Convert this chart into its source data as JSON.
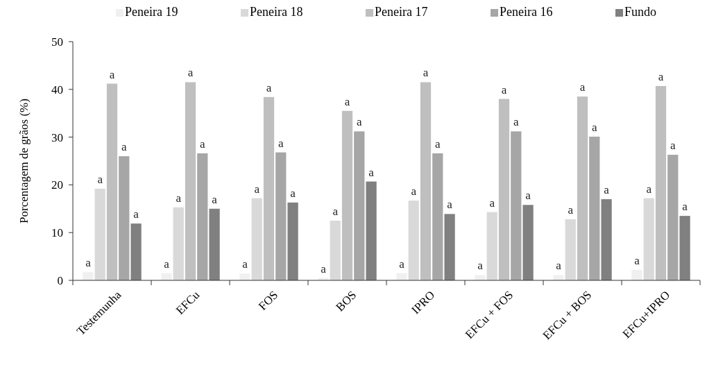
{
  "chart_data": {
    "type": "bar",
    "ylabel": "Porcentagem de grãos (%)",
    "categories": [
      "Testemunha",
      "EFCu",
      "FOS",
      "BOS",
      "IPRO",
      "EFCu + FOS",
      "EFCu + BOS",
      "EFCu+IPRO"
    ],
    "series": [
      {
        "name": "Peneira 19",
        "color": "#f0f0f0",
        "values": [
          1.7,
          1.5,
          1.4,
          0.5,
          1.5,
          1.1,
          1.1,
          2.2
        ],
        "value_labels": [
          "a",
          "a",
          "a",
          "a",
          "a",
          "a",
          "a",
          "a"
        ]
      },
      {
        "name": "Peneira 18",
        "color": "#d9d9d9",
        "values": [
          19.2,
          15.3,
          17.2,
          12.5,
          16.7,
          14.3,
          12.8,
          17.2
        ],
        "value_labels": [
          "a",
          "a",
          "a",
          "a",
          "a",
          "a",
          "a",
          "a"
        ]
      },
      {
        "name": "Peneira 17",
        "color": "#bfbfbf",
        "values": [
          41.2,
          41.5,
          38.4,
          35.5,
          41.5,
          38.0,
          38.5,
          40.7
        ],
        "value_labels": [
          "a",
          "a",
          "a",
          "a",
          "a",
          "a",
          "a",
          "a"
        ]
      },
      {
        "name": "Peneira 16",
        "color": "#a6a6a6",
        "values": [
          26.0,
          26.6,
          26.8,
          31.2,
          26.6,
          31.2,
          30.1,
          26.3
        ],
        "value_labels": [
          "a",
          "a",
          "a",
          "a",
          "a",
          "a",
          "a",
          "a"
        ]
      },
      {
        "name": "Fundo",
        "color": "#808080",
        "values": [
          11.9,
          15.0,
          16.3,
          20.7,
          13.9,
          15.8,
          17.0,
          13.5
        ],
        "value_labels": [
          "a",
          "a",
          "a",
          "a",
          "a",
          "a",
          "a",
          "a"
        ]
      }
    ],
    "ylim": [
      0,
      50
    ],
    "yticks": [
      0,
      10,
      20,
      30,
      40,
      50
    ],
    "legend": "top"
  }
}
